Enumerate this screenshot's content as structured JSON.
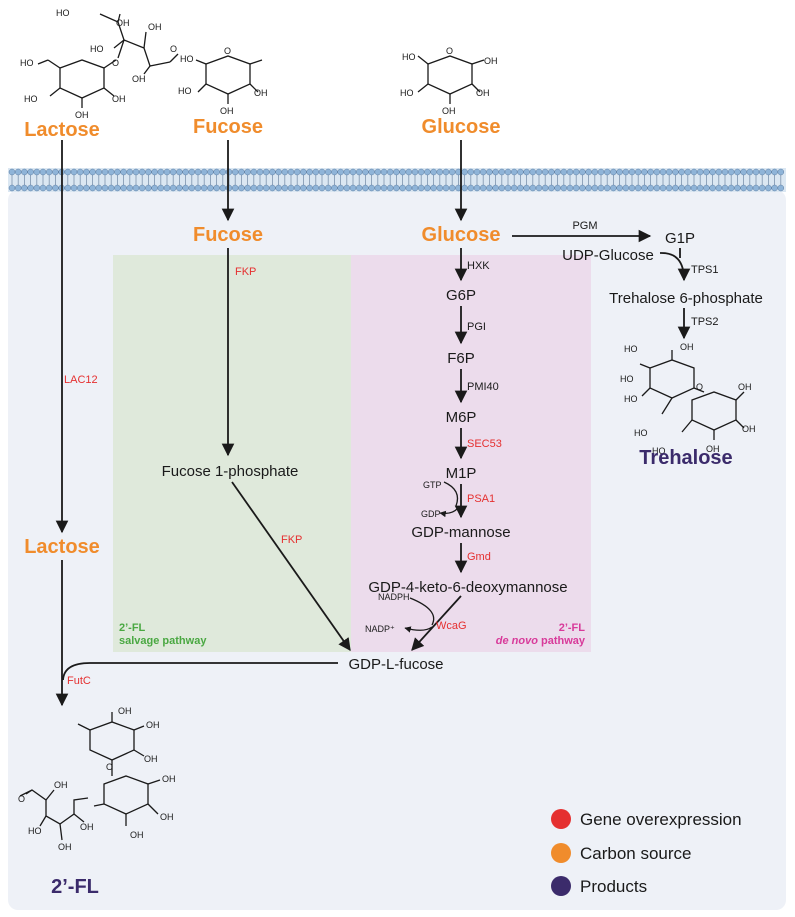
{
  "carbon_sources": {
    "lactose_outside": "Lactose",
    "fucose_outside": "Fucose",
    "glucose_outside": "Glucose",
    "fucose_inside": "Fucose",
    "glucose_inside": "Glucose",
    "lactose_inside": "Lactose"
  },
  "intermediates": {
    "g6p": "G6P",
    "f6p": "F6P",
    "m6p": "M6P",
    "m1p": "M1P",
    "gdp_mannose": "GDP-mannose",
    "gdp_keto": "GDP-4-keto-6-deoxymannose",
    "gdp_fucose": "GDP-L-fucose",
    "fucose_1p": "Fucose 1-phosphate",
    "g1p": "G1P",
    "udp_glucose": "UDP-Glucose",
    "t6p": "Trehalose 6-phosphate"
  },
  "enzymes_black": {
    "hxk": "HXK",
    "pgi": "PGI",
    "pmi40": "PMI40",
    "pgm": "PGM",
    "tps1": "TPS1",
    "tps2": "TPS2"
  },
  "enzymes_red": {
    "fkp_top": "FKP",
    "fkp_bottom": "FKP",
    "lac12": "LAC12",
    "sec53": "SEC53",
    "psa1": "PSA1",
    "gmd": "Gmd",
    "wcag": "WcaG",
    "futc": "FutC"
  },
  "cofactors": {
    "gtp": "GTP",
    "gdp": "GDP",
    "nadph": "NADPH",
    "nadp": "NADP⁺"
  },
  "products": {
    "trehalose": "Trehalose",
    "two_fl": "2’-FL"
  },
  "pathway_labels": {
    "salvage_line1": "2’-FL",
    "salvage_line2": "salvage pathway",
    "denovo_line1": "2’-FL",
    "denovo_italic": "de novo",
    "denovo_rest": " pathway"
  },
  "legend": [
    {
      "label": "Gene overexpression",
      "color": "#e53030"
    },
    {
      "label": "Carbon source",
      "color": "#f08c2c"
    },
    {
      "label": "Products",
      "color": "#3b2b6b"
    }
  ],
  "colors": {
    "cell": "#eef1f7",
    "salvage_box": "#dfe9db",
    "denovo_box": "#ecdcec",
    "membrane_head": "#8fb4d8",
    "carbon": "#f08c2c",
    "gene": "#e53030",
    "product": "#3b2b6b"
  }
}
